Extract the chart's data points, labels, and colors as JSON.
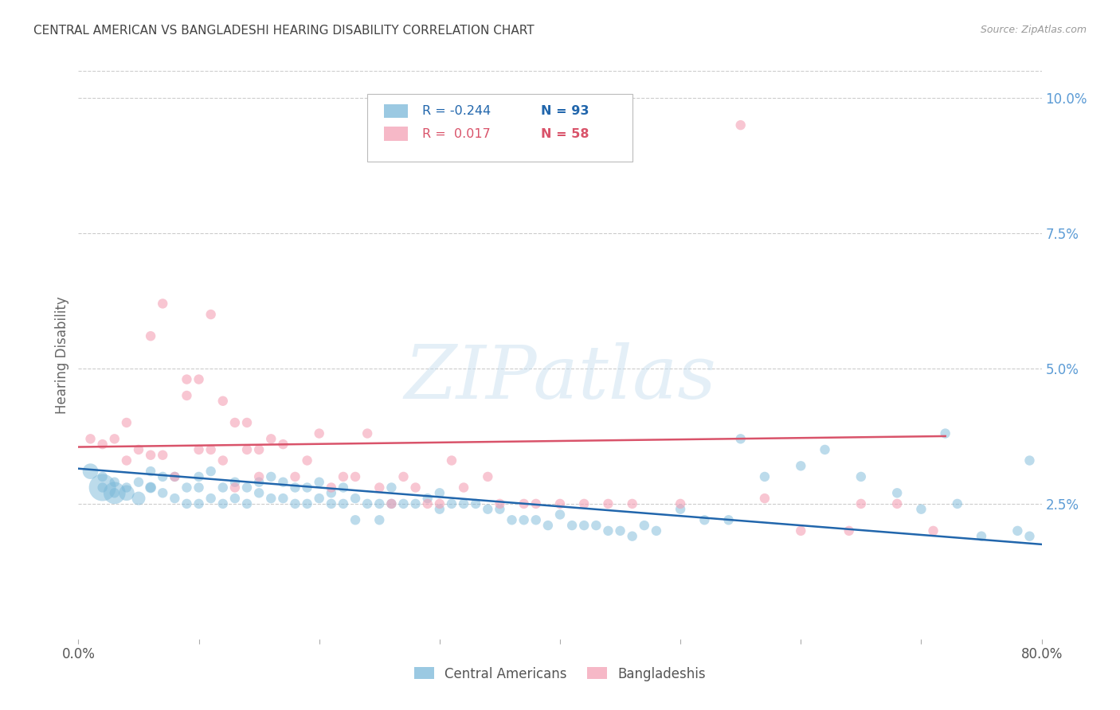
{
  "title": "CENTRAL AMERICAN VS BANGLADESHI HEARING DISABILITY CORRELATION CHART",
  "source": "Source: ZipAtlas.com",
  "ylabel": "Hearing Disability",
  "xlim": [
    0.0,
    0.8
  ],
  "ylim": [
    0.0,
    0.105
  ],
  "xticks": [
    0.0,
    0.1,
    0.2,
    0.3,
    0.4,
    0.5,
    0.6,
    0.7,
    0.8
  ],
  "yticks_right": [
    0.025,
    0.05,
    0.075,
    0.1
  ],
  "yticklabels_right": [
    "2.5%",
    "5.0%",
    "7.5%",
    "10.0%"
  ],
  "blue_color": "#7ab8d9",
  "pink_color": "#f4a0b5",
  "blue_line_color": "#2166ac",
  "pink_line_color": "#d9536a",
  "legend_r_blue": "-0.244",
  "legend_n_blue": "93",
  "legend_r_pink": "0.017",
  "legend_n_pink": "58",
  "legend_label_blue": "Central Americans",
  "legend_label_pink": "Bangladeshis",
  "watermark": "ZIPatlas",
  "background_color": "#ffffff",
  "grid_color": "#cccccc",
  "title_color": "#444444",
  "right_tick_color": "#5b9bd5",
  "blue_scatter_x": [
    0.01,
    0.02,
    0.02,
    0.03,
    0.03,
    0.04,
    0.05,
    0.06,
    0.06,
    0.07,
    0.07,
    0.08,
    0.08,
    0.09,
    0.09,
    0.1,
    0.1,
    0.1,
    0.11,
    0.11,
    0.12,
    0.12,
    0.13,
    0.13,
    0.14,
    0.14,
    0.15,
    0.15,
    0.16,
    0.16,
    0.17,
    0.17,
    0.18,
    0.18,
    0.19,
    0.19,
    0.2,
    0.2,
    0.21,
    0.21,
    0.22,
    0.22,
    0.23,
    0.23,
    0.24,
    0.25,
    0.25,
    0.26,
    0.26,
    0.27,
    0.28,
    0.29,
    0.3,
    0.3,
    0.31,
    0.32,
    0.33,
    0.34,
    0.35,
    0.36,
    0.37,
    0.38,
    0.39,
    0.4,
    0.41,
    0.42,
    0.43,
    0.44,
    0.45,
    0.46,
    0.47,
    0.48,
    0.5,
    0.52,
    0.54,
    0.55,
    0.57,
    0.6,
    0.62,
    0.65,
    0.68,
    0.7,
    0.72,
    0.73,
    0.75,
    0.78,
    0.79,
    0.79,
    0.02,
    0.03,
    0.04,
    0.05,
    0.06
  ],
  "blue_scatter_y": [
    0.031,
    0.03,
    0.028,
    0.029,
    0.027,
    0.028,
    0.029,
    0.031,
    0.028,
    0.03,
    0.027,
    0.03,
    0.026,
    0.028,
    0.025,
    0.028,
    0.025,
    0.03,
    0.026,
    0.031,
    0.025,
    0.028,
    0.029,
    0.026,
    0.025,
    0.028,
    0.027,
    0.029,
    0.026,
    0.03,
    0.026,
    0.029,
    0.025,
    0.028,
    0.025,
    0.028,
    0.026,
    0.029,
    0.025,
    0.027,
    0.025,
    0.028,
    0.026,
    0.022,
    0.025,
    0.025,
    0.022,
    0.028,
    0.025,
    0.025,
    0.025,
    0.026,
    0.024,
    0.027,
    0.025,
    0.025,
    0.025,
    0.024,
    0.024,
    0.022,
    0.022,
    0.022,
    0.021,
    0.023,
    0.021,
    0.021,
    0.021,
    0.02,
    0.02,
    0.019,
    0.021,
    0.02,
    0.024,
    0.022,
    0.022,
    0.037,
    0.03,
    0.032,
    0.035,
    0.03,
    0.027,
    0.024,
    0.038,
    0.025,
    0.019,
    0.02,
    0.033,
    0.019,
    0.028,
    0.027,
    0.027,
    0.026,
    0.028
  ],
  "blue_scatter_sizes": [
    200,
    80,
    80,
    80,
    80,
    80,
    80,
    80,
    80,
    80,
    80,
    80,
    80,
    80,
    80,
    80,
    80,
    80,
    80,
    80,
    80,
    80,
    80,
    80,
    80,
    80,
    80,
    80,
    80,
    80,
    80,
    80,
    80,
    80,
    80,
    80,
    80,
    80,
    80,
    80,
    80,
    80,
    80,
    80,
    80,
    80,
    80,
    80,
    80,
    80,
    80,
    80,
    80,
    80,
    80,
    80,
    80,
    80,
    80,
    80,
    80,
    80,
    80,
    80,
    80,
    80,
    80,
    80,
    80,
    80,
    80,
    80,
    80,
    80,
    80,
    80,
    80,
    80,
    80,
    80,
    80,
    80,
    80,
    80,
    80,
    80,
    80,
    80,
    600,
    400,
    200,
    150,
    100
  ],
  "pink_scatter_x": [
    0.01,
    0.02,
    0.03,
    0.04,
    0.04,
    0.05,
    0.06,
    0.06,
    0.07,
    0.07,
    0.08,
    0.09,
    0.09,
    0.1,
    0.1,
    0.11,
    0.11,
    0.12,
    0.12,
    0.13,
    0.13,
    0.14,
    0.14,
    0.15,
    0.15,
    0.16,
    0.17,
    0.18,
    0.19,
    0.2,
    0.21,
    0.22,
    0.23,
    0.24,
    0.25,
    0.26,
    0.27,
    0.28,
    0.29,
    0.3,
    0.31,
    0.32,
    0.34,
    0.35,
    0.37,
    0.38,
    0.4,
    0.42,
    0.44,
    0.46,
    0.5,
    0.55,
    0.57,
    0.6,
    0.64,
    0.65,
    0.68,
    0.71
  ],
  "pink_scatter_y": [
    0.037,
    0.036,
    0.037,
    0.04,
    0.033,
    0.035,
    0.056,
    0.034,
    0.062,
    0.034,
    0.03,
    0.045,
    0.048,
    0.035,
    0.048,
    0.035,
    0.06,
    0.044,
    0.033,
    0.04,
    0.028,
    0.04,
    0.035,
    0.035,
    0.03,
    0.037,
    0.036,
    0.03,
    0.033,
    0.038,
    0.028,
    0.03,
    0.03,
    0.038,
    0.028,
    0.025,
    0.03,
    0.028,
    0.025,
    0.025,
    0.033,
    0.028,
    0.03,
    0.025,
    0.025,
    0.025,
    0.025,
    0.025,
    0.025,
    0.025,
    0.025,
    0.095,
    0.026,
    0.02,
    0.02,
    0.025,
    0.025,
    0.02
  ],
  "pink_scatter_sizes": [
    80,
    80,
    80,
    80,
    80,
    80,
    80,
    80,
    80,
    80,
    80,
    80,
    80,
    80,
    80,
    80,
    80,
    80,
    80,
    80,
    80,
    80,
    80,
    80,
    80,
    80,
    80,
    80,
    80,
    80,
    80,
    80,
    80,
    80,
    80,
    80,
    80,
    80,
    80,
    80,
    80,
    80,
    80,
    80,
    80,
    80,
    80,
    80,
    80,
    80,
    80,
    80,
    80,
    80,
    80,
    80,
    80,
    80
  ],
  "blue_trend_x": [
    0.0,
    0.8
  ],
  "blue_trend_y": [
    0.0315,
    0.0175
  ],
  "pink_trend_x": [
    0.0,
    0.72
  ],
  "pink_trend_y": [
    0.0355,
    0.0375
  ]
}
